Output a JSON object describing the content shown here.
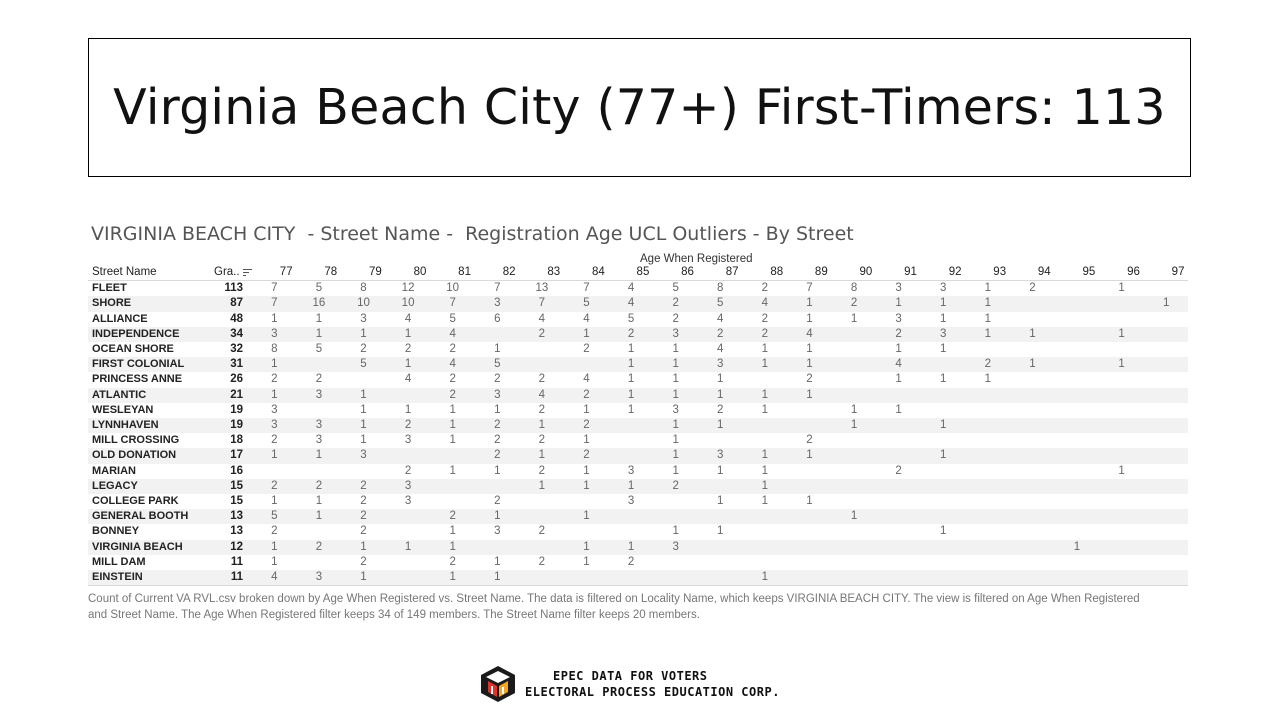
{
  "slide": {
    "title": "Virginia Beach City (77+) First-Timers: 113"
  },
  "worksheet": {
    "title": "VIRGINIA BEACH CITY  - Street Name -  Registration Age UCL Outliers - By Street",
    "caption": "Count of Current VA RVL.csv broken down by Age When Registered vs. Street Name. The data is filtered on Locality Name, which keeps VIRGINIA BEACH CITY. The view is filtered on Age When Registered and Street Name. The Age When Registered filter keeps 34 of 149 members. The Street Name filter keeps 20 members."
  },
  "footer": {
    "line1": "EPEC DATA FOR VOTERS",
    "line2": "ELECTORAL PROCESS EDUCATION CORP."
  },
  "chart_data": {
    "type": "table",
    "column_header_title": "Age When Registered",
    "row_header": "Street Name",
    "grand_total_header": "Gra..",
    "columns": [
      "77",
      "78",
      "79",
      "80",
      "81",
      "82",
      "83",
      "84",
      "85",
      "86",
      "87",
      "88",
      "89",
      "90",
      "91",
      "92",
      "93",
      "94",
      "95",
      "96",
      "97"
    ],
    "rows": [
      {
        "street": "FLEET",
        "total": "113",
        "values": [
          "7",
          "5",
          "8",
          "12",
          "10",
          "7",
          "13",
          "7",
          "4",
          "5",
          "8",
          "2",
          "7",
          "8",
          "3",
          "3",
          "1",
          "2",
          "",
          "1",
          ""
        ]
      },
      {
        "street": "SHORE",
        "total": "87",
        "values": [
          "7",
          "16",
          "10",
          "10",
          "7",
          "3",
          "7",
          "5",
          "4",
          "2",
          "5",
          "4",
          "1",
          "2",
          "1",
          "1",
          "1",
          "",
          "",
          "",
          "1"
        ]
      },
      {
        "street": "ALLIANCE",
        "total": "48",
        "values": [
          "1",
          "1",
          "3",
          "4",
          "5",
          "6",
          "4",
          "4",
          "5",
          "2",
          "4",
          "2",
          "1",
          "1",
          "3",
          "1",
          "1",
          "",
          "",
          "",
          ""
        ]
      },
      {
        "street": "INDEPENDENCE",
        "total": "34",
        "values": [
          "3",
          "1",
          "1",
          "1",
          "4",
          "",
          "2",
          "1",
          "2",
          "3",
          "2",
          "2",
          "4",
          "",
          "2",
          "3",
          "1",
          "1",
          "",
          "1",
          ""
        ]
      },
      {
        "street": "OCEAN SHORE",
        "total": "32",
        "values": [
          "8",
          "5",
          "2",
          "2",
          "2",
          "1",
          "",
          "2",
          "1",
          "1",
          "4",
          "1",
          "1",
          "",
          "1",
          "1",
          "",
          "",
          "",
          "",
          ""
        ]
      },
      {
        "street": "FIRST COLONIAL",
        "total": "31",
        "values": [
          "1",
          "",
          "5",
          "1",
          "4",
          "5",
          "",
          "",
          "1",
          "1",
          "3",
          "1",
          "1",
          "",
          "4",
          "",
          "2",
          "1",
          "",
          "1",
          ""
        ]
      },
      {
        "street": "PRINCESS ANNE",
        "total": "26",
        "values": [
          "2",
          "2",
          "",
          "4",
          "2",
          "2",
          "2",
          "4",
          "1",
          "1",
          "1",
          "",
          "2",
          "",
          "1",
          "1",
          "1",
          "",
          "",
          "",
          ""
        ]
      },
      {
        "street": "ATLANTIC",
        "total": "21",
        "values": [
          "1",
          "3",
          "1",
          "",
          "2",
          "3",
          "4",
          "2",
          "1",
          "1",
          "1",
          "1",
          "1",
          "",
          "",
          "",
          "",
          "",
          "",
          "",
          ""
        ]
      },
      {
        "street": "WESLEYAN",
        "total": "19",
        "values": [
          "3",
          "",
          "1",
          "1",
          "1",
          "1",
          "2",
          "1",
          "1",
          "3",
          "2",
          "1",
          "",
          "1",
          "1",
          "",
          "",
          "",
          "",
          "",
          ""
        ]
      },
      {
        "street": "LYNNHAVEN",
        "total": "19",
        "values": [
          "3",
          "3",
          "1",
          "2",
          "1",
          "2",
          "1",
          "2",
          "",
          "1",
          "1",
          "",
          "",
          "1",
          "",
          "1",
          "",
          "",
          "",
          "",
          ""
        ]
      },
      {
        "street": "MILL CROSSING",
        "total": "18",
        "values": [
          "2",
          "3",
          "1",
          "3",
          "1",
          "2",
          "2",
          "1",
          "",
          "1",
          "",
          "",
          "2",
          "",
          "",
          "",
          "",
          "",
          "",
          "",
          ""
        ]
      },
      {
        "street": "OLD DONATION",
        "total": "17",
        "values": [
          "1",
          "1",
          "3",
          "",
          "",
          "2",
          "1",
          "2",
          "",
          "1",
          "3",
          "1",
          "1",
          "",
          "",
          "1",
          "",
          "",
          "",
          "",
          ""
        ]
      },
      {
        "street": "MARIAN",
        "total": "16",
        "values": [
          "",
          "",
          "",
          "2",
          "1",
          "1",
          "2",
          "1",
          "3",
          "1",
          "1",
          "1",
          "",
          "",
          "2",
          "",
          "",
          "",
          "",
          "1",
          ""
        ]
      },
      {
        "street": "LEGACY",
        "total": "15",
        "values": [
          "2",
          "2",
          "2",
          "3",
          "",
          "",
          "1",
          "1",
          "1",
          "2",
          "",
          "1",
          "",
          "",
          "",
          "",
          "",
          "",
          "",
          "",
          ""
        ]
      },
      {
        "street": "COLLEGE PARK",
        "total": "15",
        "values": [
          "1",
          "1",
          "2",
          "3",
          "",
          "2",
          "",
          "",
          "3",
          "",
          "1",
          "1",
          "1",
          "",
          "",
          "",
          "",
          "",
          "",
          "",
          ""
        ]
      },
      {
        "street": "GENERAL BOOTH",
        "total": "13",
        "values": [
          "5",
          "1",
          "2",
          "",
          "2",
          "1",
          "",
          "1",
          "",
          "",
          "",
          "",
          "",
          "1",
          "",
          "",
          "",
          "",
          "",
          "",
          ""
        ]
      },
      {
        "street": "BONNEY",
        "total": "13",
        "values": [
          "2",
          "",
          "2",
          "",
          "1",
          "3",
          "2",
          "",
          "",
          "1",
          "1",
          "",
          "",
          "",
          "",
          "1",
          "",
          "",
          "",
          "",
          ""
        ]
      },
      {
        "street": "VIRGINIA BEACH",
        "total": "12",
        "values": [
          "1",
          "2",
          "1",
          "1",
          "1",
          "",
          "",
          "1",
          "1",
          "3",
          "",
          "",
          "",
          "",
          "",
          "",
          "",
          "",
          "1",
          "",
          ""
        ]
      },
      {
        "street": "MILL DAM",
        "total": "11",
        "values": [
          "1",
          "",
          "2",
          "",
          "2",
          "1",
          "2",
          "1",
          "2",
          "",
          "",
          "",
          "",
          "",
          "",
          "",
          "",
          "",
          "",
          "",
          ""
        ]
      },
      {
        "street": "EINSTEIN",
        "total": "11",
        "values": [
          "4",
          "3",
          "1",
          "",
          "1",
          "1",
          "",
          "",
          "",
          "",
          "",
          "1",
          "",
          "",
          "",
          "",
          "",
          "",
          "",
          "",
          ""
        ]
      }
    ]
  }
}
